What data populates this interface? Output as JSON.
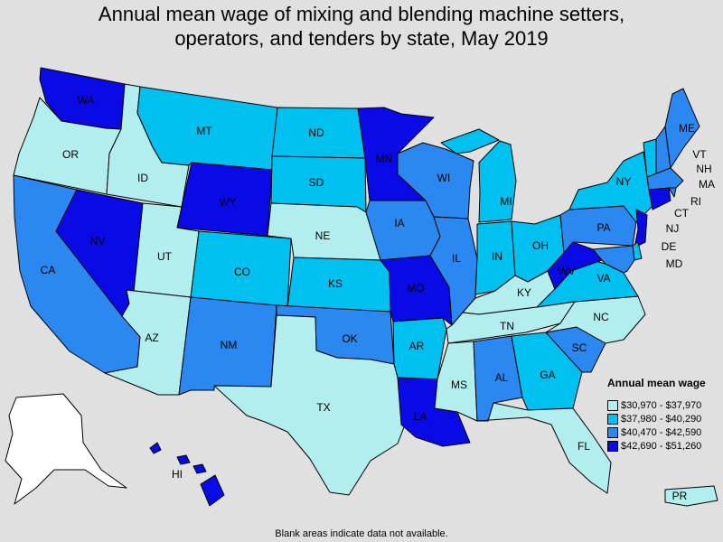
{
  "title": {
    "line1": "Annual mean wage of mixing and blending machine setters,",
    "line2": "operators, and tenders by state, May 2019"
  },
  "legend": {
    "title": "Annual mean wage",
    "items": [
      {
        "label": "$30,970 - $37,970",
        "color": "#b2eeee"
      },
      {
        "label": "$37,980 - $40,290",
        "color": "#00c0f0"
      },
      {
        "label": "$40,470 - $42,590",
        "color": "#2a88f0"
      },
      {
        "label": "$42,690 - $51,260",
        "color": "#0a0ae6"
      }
    ],
    "no_data_color": "#ffffff"
  },
  "footnote": "Blank areas indicate data not available.",
  "states": [
    {
      "abbr": "WA",
      "category": 4
    },
    {
      "abbr": "OR",
      "category": 1
    },
    {
      "abbr": "CA",
      "category": 3
    },
    {
      "abbr": "NV",
      "category": 4
    },
    {
      "abbr": "ID",
      "category": 1
    },
    {
      "abbr": "MT",
      "category": 2
    },
    {
      "abbr": "WY",
      "category": 4
    },
    {
      "abbr": "UT",
      "category": 1
    },
    {
      "abbr": "AZ",
      "category": 1
    },
    {
      "abbr": "CO",
      "category": 2
    },
    {
      "abbr": "NM",
      "category": 3
    },
    {
      "abbr": "ND",
      "category": 2
    },
    {
      "abbr": "SD",
      "category": 2
    },
    {
      "abbr": "NE",
      "category": 1
    },
    {
      "abbr": "KS",
      "category": 2
    },
    {
      "abbr": "OK",
      "category": 3
    },
    {
      "abbr": "TX",
      "category": 1
    },
    {
      "abbr": "MN",
      "category": 4
    },
    {
      "abbr": "IA",
      "category": 3
    },
    {
      "abbr": "MO",
      "category": 4
    },
    {
      "abbr": "AR",
      "category": 2
    },
    {
      "abbr": "LA",
      "category": 4
    },
    {
      "abbr": "WI",
      "category": 3
    },
    {
      "abbr": "IL",
      "category": 3
    },
    {
      "abbr": "MI",
      "category": 2
    },
    {
      "abbr": "IN",
      "category": 2
    },
    {
      "abbr": "OH",
      "category": 2
    },
    {
      "abbr": "KY",
      "category": 1
    },
    {
      "abbr": "TN",
      "category": 1
    },
    {
      "abbr": "MS",
      "category": 1
    },
    {
      "abbr": "AL",
      "category": 3
    },
    {
      "abbr": "GA",
      "category": 2
    },
    {
      "abbr": "FL",
      "category": 1
    },
    {
      "abbr": "SC",
      "category": 3
    },
    {
      "abbr": "NC",
      "category": 1
    },
    {
      "abbr": "VA",
      "category": 2
    },
    {
      "abbr": "WV",
      "category": 4
    },
    {
      "abbr": "PA",
      "category": 3
    },
    {
      "abbr": "NY",
      "category": 2
    },
    {
      "abbr": "VT",
      "category": 2
    },
    {
      "abbr": "NH",
      "category": 3
    },
    {
      "abbr": "ME",
      "category": 3
    },
    {
      "abbr": "MA",
      "category": 3
    },
    {
      "abbr": "RI",
      "category": 3
    },
    {
      "abbr": "CT",
      "category": 4
    },
    {
      "abbr": "NJ",
      "category": 4
    },
    {
      "abbr": "DE",
      "category": 2
    },
    {
      "abbr": "MD",
      "category": 3
    },
    {
      "abbr": "AK",
      "category": 0
    },
    {
      "abbr": "HI",
      "category": 4
    },
    {
      "abbr": "PR",
      "category": 1
    }
  ]
}
